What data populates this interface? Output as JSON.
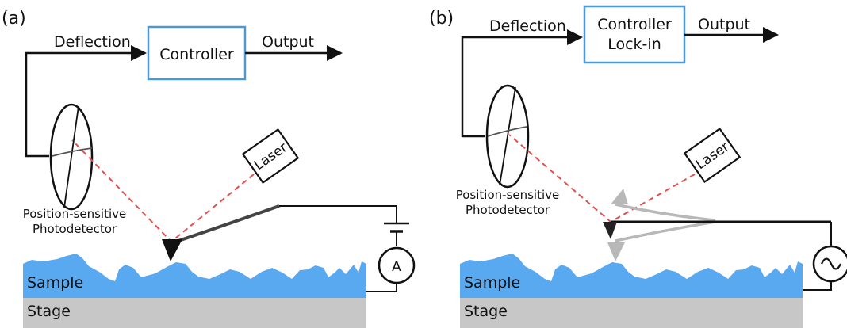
{
  "colors": {
    "sample": "#59a9f0",
    "stage": "#c7c7c7",
    "controller_border": "#4a9ad8",
    "beam": "#e05050",
    "tip": "#111111",
    "ghost_cantilever": "#b8b8b8"
  },
  "panel_a": {
    "label": "(a)",
    "deflection": "Deflection",
    "controller": "Controller",
    "output": "Output",
    "laser": "Laser",
    "photodetector_line1": "Position-sensitive",
    "photodetector_line2": "Photodetector",
    "sample": "Sample",
    "stage": "Stage",
    "meter": "A"
  },
  "panel_b": {
    "label": "(b)",
    "deflection": "Deflection",
    "controller_line1": "Controller",
    "controller_line2": "Lock-in",
    "output": "Output",
    "laser": "Laser",
    "photodetector_line1": "Position-sensitive",
    "photodetector_line2": "Photodetector",
    "sample": "Sample",
    "stage": "Stage",
    "ac_source": "ac-source-icon"
  }
}
